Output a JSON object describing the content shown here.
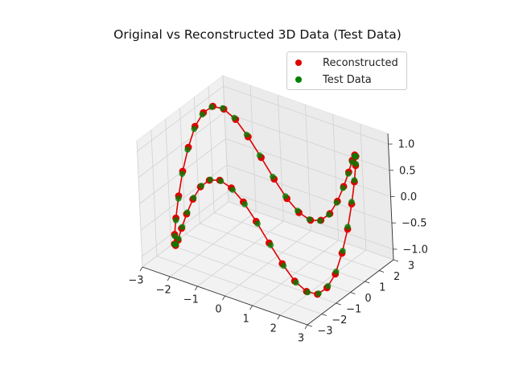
{
  "chart_data": {
    "type": "scatter",
    "projection": "3d",
    "title": "Original vs Reconstructed 3D Data (Test Data)",
    "xlabel": "",
    "ylabel": "",
    "zlabel": "",
    "xlim": [
      -3,
      3
    ],
    "ylim": [
      -3,
      3
    ],
    "zlim": [
      -1.2,
      1.2
    ],
    "x_ticks": [
      "−3",
      "−2",
      "−1",
      "0",
      "1",
      "2",
      "3"
    ],
    "y_ticks": [
      "−3",
      "−2",
      "−1",
      "0",
      "1",
      "2",
      "3"
    ],
    "z_ticks": [
      "−1.0",
      "−0.5",
      "0.0",
      "0.5",
      "1.0"
    ],
    "grid": true,
    "legend_position": "top-right",
    "curve": "helix: x = 3 cos t, y = 3 sin t, z = sin 3t",
    "series": [
      {
        "name": "Reconstructed",
        "color": "#e00000",
        "style": "points-with-line",
        "points": [
          {
            "x": 3.0,
            "y": 0.0,
            "z": 0.0
          },
          {
            "x": 2.97,
            "y": 0.4,
            "z": 0.39
          },
          {
            "x": 2.9,
            "y": 0.78,
            "z": 0.72
          },
          {
            "x": 2.77,
            "y": 1.15,
            "z": 0.93
          },
          {
            "x": 2.6,
            "y": 1.5,
            "z": 1.0
          },
          {
            "x": 2.38,
            "y": 1.83,
            "z": 0.92
          },
          {
            "x": 2.12,
            "y": 2.12,
            "z": 0.71
          },
          {
            "x": 1.83,
            "y": 2.38,
            "z": 0.38
          },
          {
            "x": 1.5,
            "y": 2.6,
            "z": 0.0
          },
          {
            "x": 1.15,
            "y": 2.77,
            "z": -0.38
          },
          {
            "x": 0.78,
            "y": 2.9,
            "z": -0.71
          },
          {
            "x": 0.4,
            "y": 2.97,
            "z": -0.92
          },
          {
            "x": 0.0,
            "y": 3.0,
            "z": -1.0
          },
          {
            "x": -0.4,
            "y": 2.97,
            "z": -0.92
          },
          {
            "x": -0.78,
            "y": 2.9,
            "z": -0.71
          },
          {
            "x": -1.15,
            "y": 2.77,
            "z": -0.38
          },
          {
            "x": -1.5,
            "y": 2.6,
            "z": 0.0
          },
          {
            "x": -1.83,
            "y": 2.38,
            "z": 0.38
          },
          {
            "x": -2.12,
            "y": 2.12,
            "z": 0.71
          },
          {
            "x": -2.38,
            "y": 1.83,
            "z": 0.92
          },
          {
            "x": -2.6,
            "y": 1.5,
            "z": 1.0
          },
          {
            "x": -2.77,
            "y": 1.15,
            "z": 0.92
          },
          {
            "x": -2.9,
            "y": 0.78,
            "z": 0.71
          },
          {
            "x": -2.97,
            "y": 0.4,
            "z": 0.38
          },
          {
            "x": -3.0,
            "y": 0.0,
            "z": 0.0
          },
          {
            "x": -2.97,
            "y": -0.4,
            "z": -0.38
          },
          {
            "x": -2.9,
            "y": -0.78,
            "z": -0.71
          },
          {
            "x": -2.77,
            "y": -1.15,
            "z": -0.92
          },
          {
            "x": -2.6,
            "y": -1.5,
            "z": -1.0
          },
          {
            "x": -2.38,
            "y": -1.83,
            "z": -0.92
          },
          {
            "x": -2.12,
            "y": -2.12,
            "z": -0.71
          },
          {
            "x": -1.83,
            "y": -2.38,
            "z": -0.38
          },
          {
            "x": -1.5,
            "y": -2.6,
            "z": 0.0
          },
          {
            "x": -1.15,
            "y": -2.77,
            "z": 0.38
          },
          {
            "x": -0.78,
            "y": -2.9,
            "z": 0.71
          },
          {
            "x": -0.4,
            "y": -2.97,
            "z": 0.92
          },
          {
            "x": 0.0,
            "y": -3.0,
            "z": 1.0
          },
          {
            "x": 0.4,
            "y": -2.97,
            "z": 0.92
          },
          {
            "x": 0.78,
            "y": -2.9,
            "z": 0.71
          },
          {
            "x": 1.15,
            "y": -2.77,
            "z": 0.38
          },
          {
            "x": 1.5,
            "y": -2.6,
            "z": 0.0
          },
          {
            "x": 1.83,
            "y": -2.38,
            "z": -0.38
          },
          {
            "x": 2.12,
            "y": -2.12,
            "z": -0.71
          },
          {
            "x": 2.38,
            "y": -1.83,
            "z": -0.92
          },
          {
            "x": 2.6,
            "y": -1.5,
            "z": -1.0
          },
          {
            "x": 2.77,
            "y": -1.15,
            "z": -0.92
          },
          {
            "x": 2.9,
            "y": -0.78,
            "z": -0.71
          },
          {
            "x": 2.97,
            "y": -0.4,
            "z": -0.38
          }
        ]
      },
      {
        "name": "Test Data",
        "color": "#008000",
        "style": "points",
        "points": [
          {
            "x": 2.98,
            "y": 0.05,
            "z": 0.03
          },
          {
            "x": 2.95,
            "y": 0.44,
            "z": 0.42
          },
          {
            "x": 2.88,
            "y": 0.82,
            "z": 0.74
          },
          {
            "x": 2.76,
            "y": 1.19,
            "z": 0.95
          },
          {
            "x": 2.58,
            "y": 1.54,
            "z": 0.99
          },
          {
            "x": 2.36,
            "y": 1.86,
            "z": 0.89
          },
          {
            "x": 2.1,
            "y": 2.15,
            "z": 0.67
          },
          {
            "x": 1.8,
            "y": 2.4,
            "z": 0.34
          },
          {
            "x": 1.46,
            "y": 2.62,
            "z": -0.04
          },
          {
            "x": 1.11,
            "y": 2.79,
            "z": -0.42
          },
          {
            "x": 0.74,
            "y": 2.91,
            "z": -0.74
          },
          {
            "x": 0.36,
            "y": 2.98,
            "z": -0.94
          },
          {
            "x": -0.04,
            "y": 3.0,
            "z": -0.99
          },
          {
            "x": -0.44,
            "y": 2.96,
            "z": -0.89
          },
          {
            "x": -0.82,
            "y": 2.88,
            "z": -0.67
          },
          {
            "x": -1.19,
            "y": 2.75,
            "z": -0.34
          },
          {
            "x": -1.54,
            "y": 2.57,
            "z": 0.04
          },
          {
            "x": -1.86,
            "y": 2.35,
            "z": 0.42
          },
          {
            "x": -2.15,
            "y": 2.09,
            "z": 0.74
          },
          {
            "x": -2.4,
            "y": 1.79,
            "z": 0.94
          },
          {
            "x": -2.62,
            "y": 1.46,
            "z": 0.99
          },
          {
            "x": -2.79,
            "y": 1.11,
            "z": 0.89
          },
          {
            "x": -2.91,
            "y": 0.74,
            "z": 0.67
          },
          {
            "x": -2.98,
            "y": 0.36,
            "z": 0.34
          },
          {
            "x": -3.0,
            "y": -0.04,
            "z": -0.04
          },
          {
            "x": -2.96,
            "y": -0.44,
            "z": -0.42
          },
          {
            "x": -2.88,
            "y": -0.82,
            "z": -0.74
          },
          {
            "x": -2.75,
            "y": -1.19,
            "z": -0.94
          },
          {
            "x": -2.57,
            "y": -1.54,
            "z": -0.99
          },
          {
            "x": -2.35,
            "y": -1.86,
            "z": -0.89
          },
          {
            "x": -2.09,
            "y": -2.15,
            "z": -0.67
          },
          {
            "x": -1.79,
            "y": -2.4,
            "z": -0.34
          },
          {
            "x": -1.46,
            "y": -2.62,
            "z": 0.04
          },
          {
            "x": -1.11,
            "y": -2.79,
            "z": 0.42
          },
          {
            "x": -0.74,
            "y": -2.91,
            "z": 0.74
          },
          {
            "x": -0.36,
            "y": -2.98,
            "z": 0.94
          },
          {
            "x": 0.04,
            "y": -3.0,
            "z": 0.99
          },
          {
            "x": 0.44,
            "y": -2.96,
            "z": 0.89
          },
          {
            "x": 0.82,
            "y": -2.88,
            "z": 0.67
          },
          {
            "x": 1.19,
            "y": -2.75,
            "z": 0.34
          },
          {
            "x": 1.54,
            "y": -2.57,
            "z": -0.04
          },
          {
            "x": 1.86,
            "y": -2.35,
            "z": -0.42
          },
          {
            "x": 2.15,
            "y": -2.09,
            "z": -0.74
          },
          {
            "x": 2.4,
            "y": -1.79,
            "z": -0.94
          },
          {
            "x": 2.62,
            "y": -1.46,
            "z": -0.99
          },
          {
            "x": 2.79,
            "y": -1.11,
            "z": -0.89
          },
          {
            "x": 2.91,
            "y": -0.74,
            "z": -0.67
          },
          {
            "x": 2.98,
            "y": -0.36,
            "z": -0.34
          }
        ]
      }
    ]
  }
}
